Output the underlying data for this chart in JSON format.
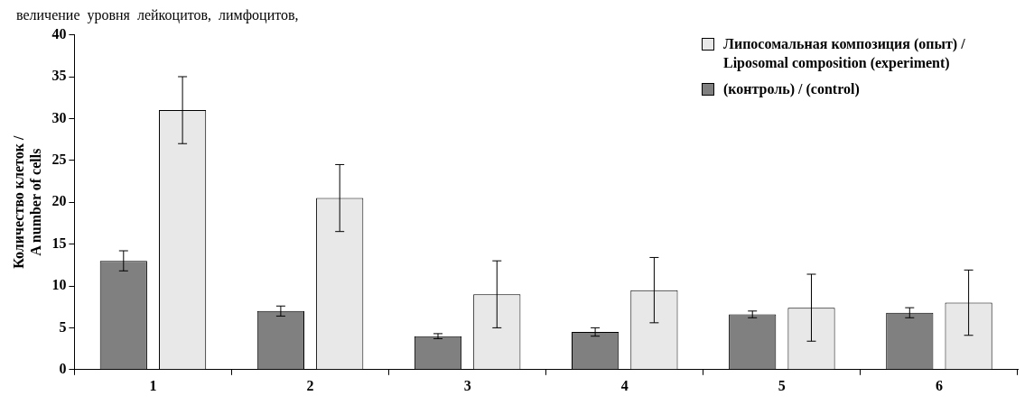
{
  "chart_data": {
    "type": "bar",
    "ylabel": "Количество клеток / A number of cells",
    "annotations": [
      "величение  уровня  лейкоцитов,  лимфоцитов,"
    ],
    "categories": [
      "1",
      "2",
      "3",
      "4",
      "5",
      "6"
    ],
    "series": [
      {
        "name": "(контроль) / (control)",
        "color": "#808080",
        "values": [
          13,
          7,
          4,
          4.5,
          6.6,
          6.8
        ],
        "errors": [
          1.2,
          0.6,
          0.3,
          0.5,
          0.4,
          0.6
        ]
      },
      {
        "name": "Липосомальная композиция (опыт) / Liposomal composition (experiment)",
        "color": "#e8e8e8",
        "values": [
          31,
          20.5,
          9,
          9.5,
          7.4,
          8
        ],
        "errors": [
          4,
          4,
          4,
          3.9,
          4,
          3.9
        ]
      }
    ],
    "ylim": [
      0,
      40
    ],
    "yticks": [
      0,
      5,
      10,
      15,
      20,
      25,
      30,
      35,
      40
    ],
    "grid": false,
    "legend": "top right"
  }
}
